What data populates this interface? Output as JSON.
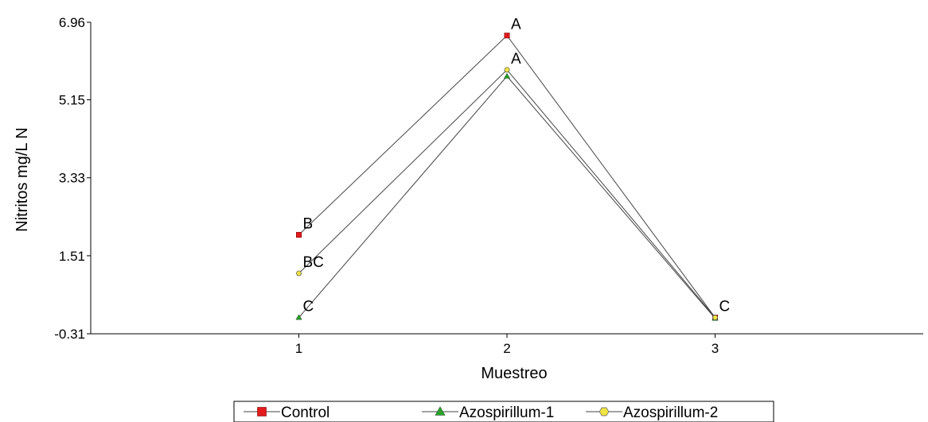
{
  "chart_data": {
    "type": "line",
    "xlabel": "Muestreo",
    "ylabel": "Nitritos mg/L N",
    "x": [
      1,
      2,
      3
    ],
    "xticks": [
      "1",
      "2",
      "3"
    ],
    "xlim": [
      0.0,
      4.0
    ],
    "yticks": [
      "-0.31",
      "1.51",
      "3.33",
      "5.15",
      "6.96"
    ],
    "ylim": [
      -0.31,
      6.96
    ],
    "grid": false,
    "legend_position": "bottom",
    "series": [
      {
        "name": "Control",
        "values": [
          2.0,
          6.65,
          0.07
        ],
        "color": "#e31a1c",
        "marker": "square"
      },
      {
        "name": "Azospirillum-1",
        "values": [
          0.07,
          5.7,
          0.05
        ],
        "color": "#2ca02c",
        "marker": "triangle"
      },
      {
        "name": "Azospirillum-2",
        "values": [
          1.1,
          5.85,
          0.07
        ],
        "color": "#f0e442",
        "marker": "hexagon"
      }
    ],
    "annotations": [
      {
        "text": "B",
        "x": 1,
        "y": 2.0
      },
      {
        "text": "BC",
        "x": 1,
        "y": 1.1
      },
      {
        "text": "C",
        "x": 1,
        "y": 0.07
      },
      {
        "text": "A",
        "x": 2,
        "y": 6.65
      },
      {
        "text": "A",
        "x": 2,
        "y": 5.85
      },
      {
        "text": "C",
        "x": 3,
        "y": 0.07
      }
    ]
  }
}
